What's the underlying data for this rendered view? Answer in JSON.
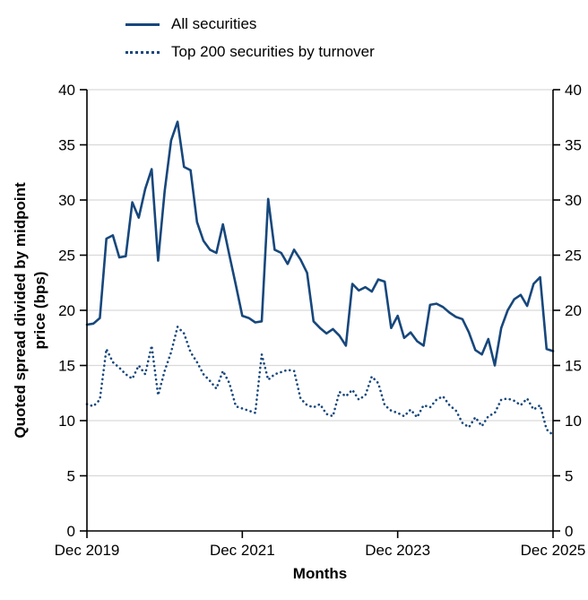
{
  "figure": {
    "xlabel": "Months",
    "ylabel_line1": "Quoted spread divided by midpoint",
    "ylabel_line2": "price (bps)"
  },
  "chart_data": {
    "type": "line",
    "title": "",
    "xlabel": "Months",
    "ylabel": "Quoted spread divided by midpoint price (bps)",
    "ylim": [
      0,
      40
    ],
    "yticks": [
      0,
      5,
      10,
      15,
      20,
      25,
      30,
      35,
      40
    ],
    "grid": true,
    "grid_color": "#d9d9d9",
    "line_color": "#17477c",
    "legend_position": "top-left",
    "xticks": [
      {
        "label": "Dec 2019",
        "index": 0
      },
      {
        "label": "Dec 2021",
        "index": 24
      },
      {
        "label": "Dec 2023",
        "index": 48
      },
      {
        "label": "Dec 2025",
        "index": 72
      }
    ],
    "x": [
      "Dec 2019",
      "Jan 2020",
      "Feb 2020",
      "Mar 2020",
      "Apr 2020",
      "May 2020",
      "Jun 2020",
      "Jul 2020",
      "Aug 2020",
      "Sep 2020",
      "Oct 2020",
      "Nov 2020",
      "Dec 2020",
      "Jan 2021",
      "Feb 2021",
      "Mar 2021",
      "Apr 2021",
      "May 2021",
      "Jun 2021",
      "Jul 2021",
      "Aug 2021",
      "Sep 2021",
      "Oct 2021",
      "Nov 2021",
      "Dec 2021",
      "Jan 2022",
      "Feb 2022",
      "Mar 2022",
      "Apr 2022",
      "May 2022",
      "Jun 2022",
      "Jul 2022",
      "Aug 2022",
      "Sep 2022",
      "Oct 2022",
      "Nov 2022",
      "Dec 2022",
      "Jan 2023",
      "Feb 2023",
      "Mar 2023",
      "Apr 2023",
      "May 2023",
      "Jun 2023",
      "Jul 2023",
      "Aug 2023",
      "Sep 2023",
      "Oct 2023",
      "Nov 2023",
      "Dec 2023",
      "Jan 2024",
      "Feb 2024",
      "Mar 2024",
      "Apr 2024",
      "May 2024",
      "Jun 2024",
      "Jul 2024",
      "Aug 2024",
      "Sep 2024",
      "Oct 2024",
      "Nov 2024",
      "Dec 2024",
      "Jan 2025",
      "Feb 2025",
      "Mar 2025",
      "Apr 2025",
      "May 2025",
      "Jun 2025",
      "Jul 2025",
      "Aug 2025",
      "Sep 2025",
      "Oct 2025",
      "Nov 2025",
      "Dec 2025"
    ],
    "series": [
      {
        "name": "All securities",
        "style": "solid",
        "values": [
          18.7,
          18.8,
          19.3,
          26.5,
          26.8,
          24.8,
          24.9,
          29.8,
          28.4,
          31.0,
          32.8,
          24.5,
          30.8,
          35.4,
          37.1,
          33.0,
          32.7,
          28.0,
          26.3,
          25.5,
          25.2,
          27.8,
          25.0,
          22.3,
          19.5,
          19.3,
          18.9,
          19.0,
          30.1,
          25.5,
          25.2,
          24.2,
          25.5,
          24.6,
          23.4,
          19.0,
          18.4,
          17.9,
          18.3,
          17.7,
          16.8,
          22.4,
          21.8,
          22.1,
          21.7,
          22.8,
          22.6,
          18.4,
          19.5,
          17.5,
          18.0,
          17.2,
          16.8,
          20.5,
          20.6,
          20.3,
          19.8,
          19.4,
          19.2,
          18.0,
          16.4,
          16.0,
          17.4,
          15.0,
          18.4,
          20.0,
          21.0,
          21.4,
          20.4,
          22.4,
          23.0,
          16.5,
          16.3
        ]
      },
      {
        "name": "Top 200 securities by turnover",
        "style": "dotted",
        "values": [
          11.5,
          11.3,
          11.9,
          16.5,
          15.3,
          14.8,
          14.2,
          13.8,
          15.0,
          14.2,
          16.8,
          12.3,
          14.5,
          16.2,
          18.5,
          17.9,
          16.2,
          15.3,
          14.2,
          13.6,
          12.9,
          14.5,
          13.4,
          11.3,
          11.1,
          10.9,
          10.7,
          16.0,
          13.7,
          14.2,
          14.4,
          14.6,
          14.5,
          12.0,
          11.4,
          11.2,
          11.5,
          10.6,
          10.4,
          12.6,
          12.2,
          12.8,
          11.9,
          12.3,
          14.0,
          13.4,
          11.4,
          10.9,
          10.7,
          10.4,
          11.0,
          10.3,
          11.4,
          11.2,
          11.9,
          12.2,
          11.4,
          10.9,
          9.8,
          9.4,
          10.3,
          9.5,
          10.4,
          10.7,
          11.9,
          12.0,
          11.8,
          11.4,
          12.0,
          11.0,
          11.4,
          9.2,
          8.7
        ]
      }
    ]
  }
}
